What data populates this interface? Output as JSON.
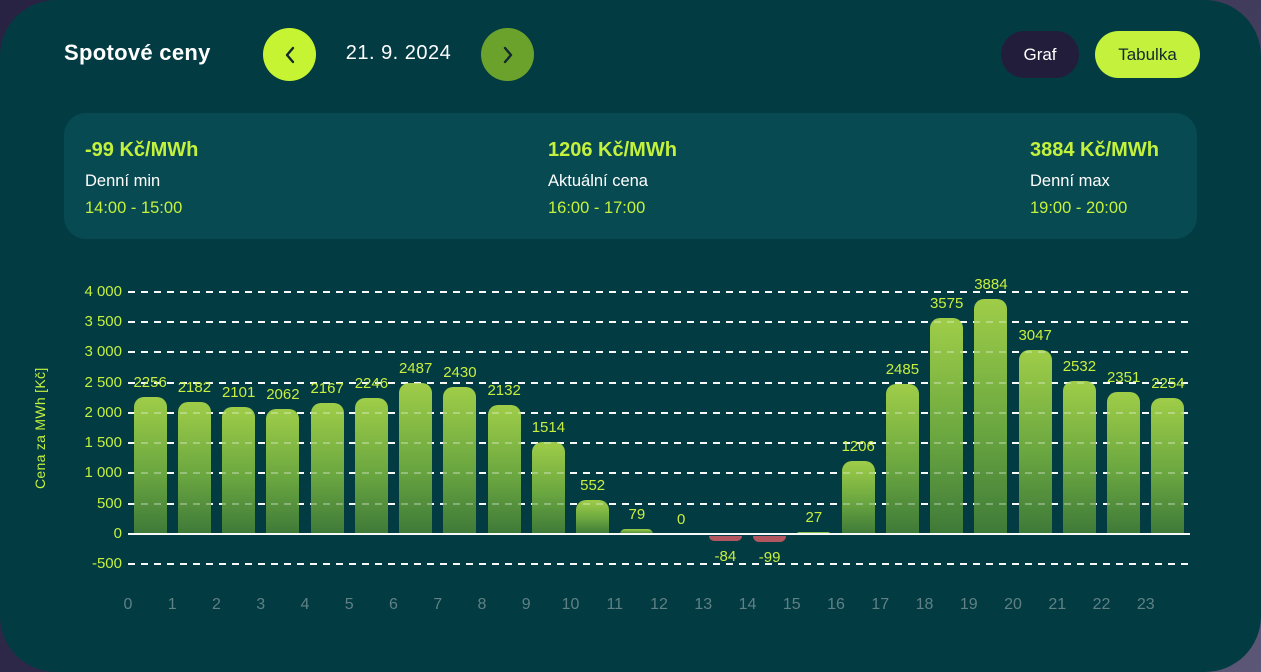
{
  "header": {
    "title": "Spotové ceny",
    "date": "21. 9. 2024",
    "view_buttons": {
      "graf": "Graf",
      "tabulka": "Tabulka",
      "active": "Tabulka"
    }
  },
  "stats": [
    {
      "value": "-99 Kč/MWh",
      "label": "Denní min",
      "time": "14:00 - 15:00"
    },
    {
      "value": "1206 Kč/MWh",
      "label": "Aktuální cena",
      "time": "16:00 - 17:00"
    },
    {
      "value": "3884 Kč/MWh",
      "label": "Denní max",
      "time": "19:00 - 20:00"
    }
  ],
  "chart_data": {
    "type": "bar",
    "title": "",
    "xlabel": "",
    "ylabel": "Cena za MWh [Kč]",
    "x_labels": [
      "0",
      "1",
      "2",
      "3",
      "4",
      "5",
      "6",
      "7",
      "8",
      "9",
      "10",
      "11",
      "12",
      "13",
      "14",
      "15",
      "16",
      "17",
      "18",
      "19",
      "20",
      "21",
      "22",
      "23"
    ],
    "values": [
      2256,
      2182,
      2101,
      2062,
      2167,
      2246,
      2487,
      2430,
      2132,
      1514,
      552,
      79,
      0,
      -84,
      -99,
      27,
      1206,
      2485,
      3575,
      3884,
      3047,
      2532,
      2351,
      2254
    ],
    "ylim": [
      -500,
      4000
    ],
    "y_ticks": [
      {
        "value": 4000,
        "label": "4 000"
      },
      {
        "value": 3500,
        "label": "3 500"
      },
      {
        "value": 3000,
        "label": "3 000"
      },
      {
        "value": 2500,
        "label": "2 500"
      },
      {
        "value": 2000,
        "label": "2 000"
      },
      {
        "value": 1500,
        "label": "1 500"
      },
      {
        "value": 1000,
        "label": "1 000"
      },
      {
        "value": 500,
        "label": "500"
      },
      {
        "value": 0,
        "label": "0"
      },
      {
        "value": -500,
        "label": "-500"
      }
    ],
    "grid": "horizontal white dashed lines, solid white zero line",
    "legend": "none"
  },
  "colors": {
    "page_background_gradient": [
      "#282243",
      "#5c5777"
    ],
    "panel_background": "#033b43",
    "stats_background": "#084a52",
    "accent_lime": "#c3f13c",
    "prev_button": "#c6f433",
    "next_button": "#6ba22b",
    "graf_button": "#211d3a",
    "bar_gradient_top": "#9fcd48",
    "bar_gradient_bottom": "#3e7a38",
    "negative_bar": "#b2575f",
    "x_axis_label": "#5f8184",
    "text_white": "#ffffff"
  }
}
